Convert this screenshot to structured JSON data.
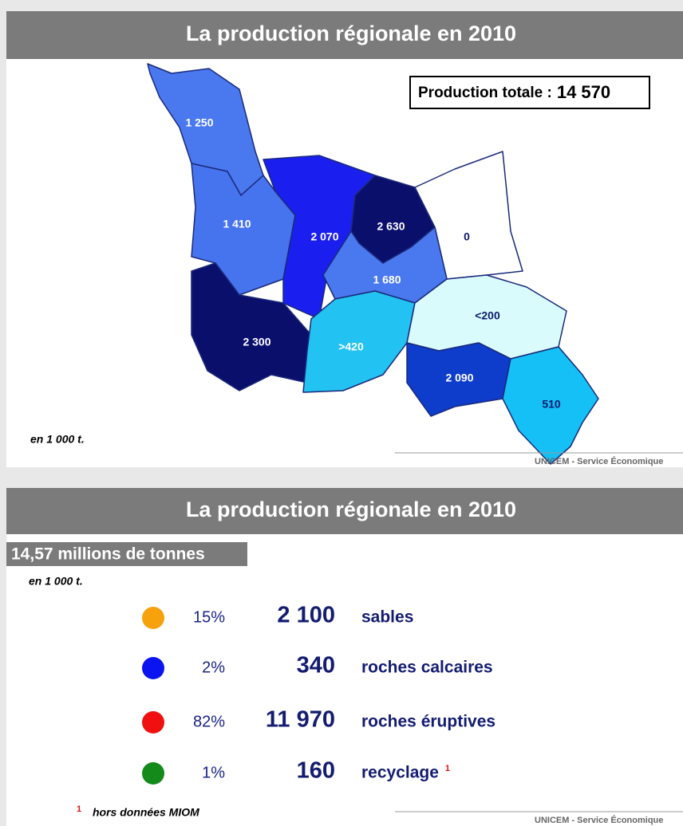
{
  "panels": [
    {
      "title": "La production régionale en 2010",
      "total_label": "Production totale :",
      "total_value": "14 570",
      "unit": "en 1 000 t.",
      "source": "UNICEM - Service Économique",
      "regions": [
        {
          "label": "1 250",
          "color": "#4a78ee"
        },
        {
          "label": "1 410",
          "color": "#4673ee"
        },
        {
          "label": "2 070",
          "color": "#1a1ff0"
        },
        {
          "label": "2 630",
          "color": "#0b0f6c"
        },
        {
          "label": "0",
          "color": "#ffffff"
        },
        {
          "label": "1 680",
          "color": "#4a78ee"
        },
        {
          "label": "2 300",
          "color": "#0b0f6c"
        },
        {
          "label": ">420",
          "color": "#22c2f2"
        },
        {
          "label": "<200",
          "color": "#d9fbfb"
        },
        {
          "label": "2 090",
          "color": "#0e3ccb"
        },
        {
          "label": "510",
          "color": "#14c0f5"
        }
      ]
    },
    {
      "title": "La production régionale en 2010",
      "subtitle": "14,57 millions de tonnes",
      "unit": "en 1 000 t.",
      "items": [
        {
          "color": "#f7a10d",
          "share": "15%",
          "tonnage": "2 100",
          "name": "sables"
        },
        {
          "color": "#0a14f0",
          "share": "2%",
          "tonnage": "340",
          "name": "roches calcaires"
        },
        {
          "color": "#f01010",
          "share": "82%",
          "tonnage": "11 970",
          "name": "roches éruptives"
        },
        {
          "color": "#138a1a",
          "share": "1%",
          "tonnage": "160",
          "name": "recyclage"
        }
      ],
      "footnote_mark": "1",
      "footnote": "hors données MIOM",
      "source": "UNICEM - Service Économique"
    }
  ]
}
